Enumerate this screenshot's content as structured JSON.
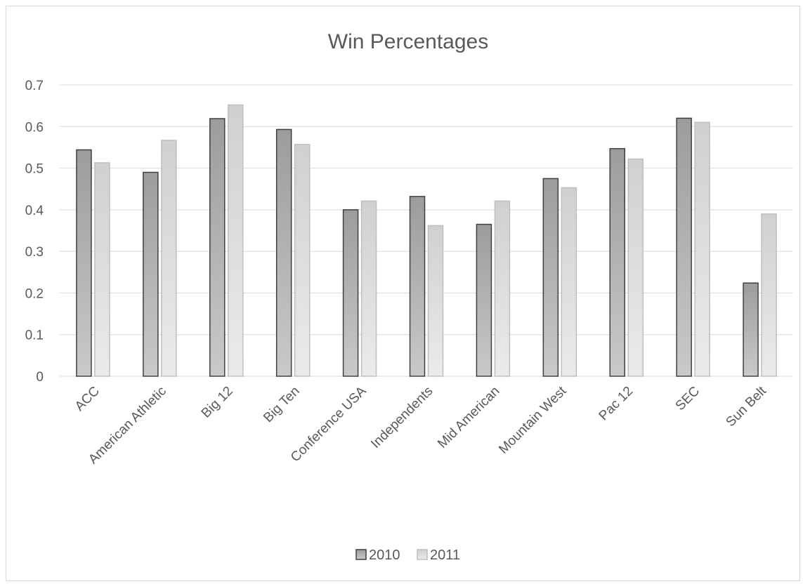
{
  "chart_data": {
    "type": "bar",
    "title": "Win Percentages",
    "xlabel": "",
    "ylabel": "",
    "ylim": [
      0,
      0.7
    ],
    "yticks": [
      0,
      0.1,
      0.2,
      0.3,
      0.4,
      0.5,
      0.6,
      0.7
    ],
    "grid": true,
    "legend_position": "bottom",
    "categories": [
      "ACC",
      "American Athletic",
      "Big 12",
      "Big Ten",
      "Conference USA",
      "Independents",
      "Mid American",
      "Mountain West",
      "Pac 12",
      "SEC",
      "Sun Belt"
    ],
    "series": [
      {
        "name": "2010",
        "color": "#a6a6a6",
        "values": [
          0.544,
          0.49,
          0.619,
          0.593,
          0.4,
          0.432,
          0.365,
          0.475,
          0.547,
          0.62,
          0.224
        ]
      },
      {
        "name": "2011",
        "color": "#d9d9d9",
        "values": [
          0.513,
          0.567,
          0.652,
          0.557,
          0.421,
          0.362,
          0.421,
          0.453,
          0.522,
          0.61,
          0.39
        ]
      }
    ]
  }
}
